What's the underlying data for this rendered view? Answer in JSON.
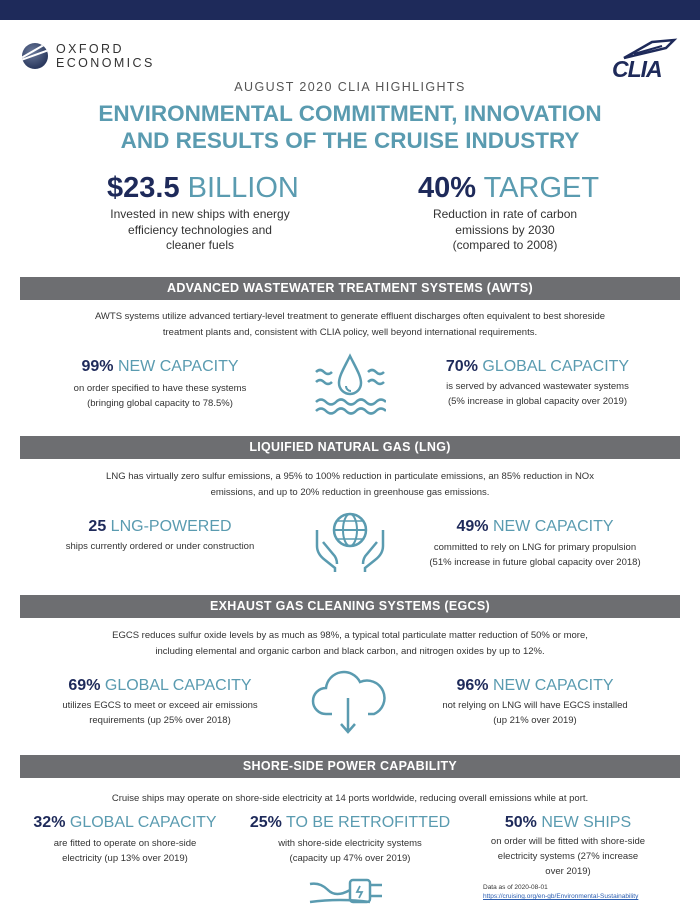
{
  "logos": {
    "oxford_line1": "OXFORD",
    "oxford_line2": "ECONOMICS",
    "clia": "CLIA"
  },
  "kicker": "AUGUST 2020 CLIA HIGHLIGHTS",
  "title_line1": "ENVIRONMENTAL COMMITMENT, INNOVATION",
  "title_line2": "AND RESULTS OF THE CRUISE INDUSTRY",
  "hero": {
    "left": {
      "value": "$23.5",
      "unit": "BILLION",
      "sub1": "Invested in new ships with energy",
      "sub2": "efficiency technologies and",
      "sub3": "cleaner fuels"
    },
    "right": {
      "value": "40%",
      "unit": "TARGET",
      "sub1": "Reduction in rate of carbon",
      "sub2": "emissions by 2030",
      "sub3": "(compared to 2008)"
    }
  },
  "awts": {
    "header": "ADVANCED WASTEWATER TREATMENT SYSTEMS (AWTS)",
    "desc1": "AWTS systems utilize advanced tertiary-level treatment to generate effluent discharges often equivalent to best shoreside",
    "desc2": "treatment plants and, consistent with CLIA policy, well beyond international requirements.",
    "left": {
      "value": "99%",
      "label": "NEW CAPACITY",
      "sub1": "on order specified to have these systems",
      "sub2": "(bringing global capacity to 78.5%)"
    },
    "right": {
      "value": "70%",
      "label": "GLOBAL CAPACITY",
      "sub1": "is served by advanced wastewater systems",
      "sub2": "(5% increase in global capacity over 2019)"
    },
    "icon": "water-drop-icon"
  },
  "lng": {
    "header": "LIQUIFIED NATURAL GAS (LNG)",
    "desc1": "LNG has virtually zero sulfur emissions, a 95% to 100% reduction in particulate emissions, an 85% reduction in NOx",
    "desc2": "emissions, and up to 20% reduction in greenhouse gas emissions.",
    "left": {
      "value": "25",
      "label": "LNG-POWERED",
      "sub1": "ships currently ordered or under construction"
    },
    "right": {
      "value": "49%",
      "label": "NEW CAPACITY",
      "sub1": "committed to rely on LNG for primary propulsion",
      "sub2": "(51% increase in future global capacity over 2018)"
    },
    "icon": "globe-hands-icon"
  },
  "egcs": {
    "header": "EXHAUST GAS CLEANING SYSTEMS (EGCS)",
    "desc1": "EGCS reduces sulfur oxide levels by as much as 98%, a typical total particulate matter reduction of 50% or more,",
    "desc2": "including elemental and organic carbon and black carbon, and nitrogen oxides by up to 12%.",
    "left": {
      "value": "69%",
      "label": "GLOBAL CAPACITY",
      "sub1": "utilizes EGCS to meet or exceed air emissions",
      "sub2": "requirements (up 25% over 2018)"
    },
    "right": {
      "value": "96%",
      "label": "NEW CAPACITY",
      "sub1": "not relying on LNG will have EGCS installed",
      "sub2": "(up 21% over 2019)"
    },
    "icon": "cloud-download-icon"
  },
  "shore": {
    "header": "SHORE-SIDE POWER CAPABILITY",
    "desc1": "Cruise ships may operate on shore-side electricity at 14 ports worldwide, reducing overall emissions while at port.",
    "col1": {
      "value": "32%",
      "label": "GLOBAL CAPACITY",
      "sub1": "are fitted to operate on shore-side",
      "sub2": "electricity (up 13% over 2019)"
    },
    "col2": {
      "value": "25%",
      "label": "TO BE RETROFITTED",
      "sub1": "with shore-side electricity systems",
      "sub2": "(capacity up 47% over 2019)"
    },
    "col3": {
      "value": "50%",
      "label": "NEW SHIPS",
      "sub1": "on order will be fitted with shore-side",
      "sub2": "electricity systems (27% increase",
      "sub3": "over 2019)"
    },
    "icon": "power-plug-icon"
  },
  "source": {
    "line1": "Data as of 2020-08-01",
    "link": "https://cruising.org/en-gb/Environmental-Sustainability"
  },
  "colors": {
    "navy": "#1e2a5a",
    "teal": "#5a9bb0",
    "band": "#6d6e71"
  }
}
